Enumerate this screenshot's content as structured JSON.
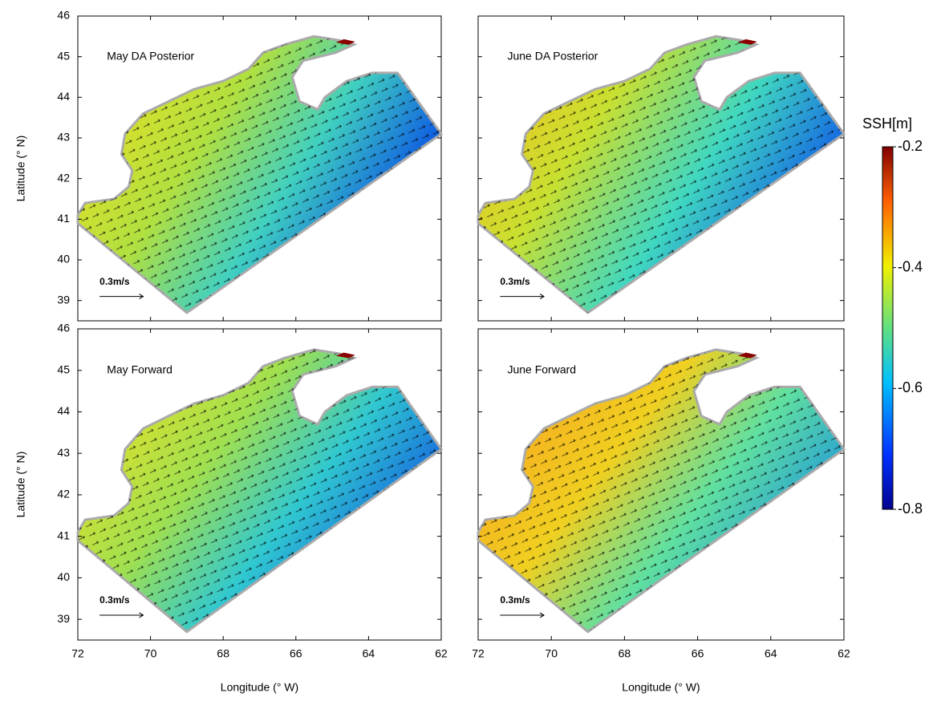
{
  "chart_data": [
    {
      "type": "map",
      "title": "May DA Posterior",
      "scale_label": "0.3m/s",
      "ylabel": "Latitude (° N)",
      "xlim": [
        72,
        62
      ],
      "xticks": [
        72,
        70,
        68,
        66,
        64,
        62
      ],
      "ylim": [
        38.5,
        46
      ],
      "yticks": [
        39,
        40,
        41,
        42,
        43,
        44,
        45,
        46
      ]
    },
    {
      "type": "map",
      "title": "June DA Posterior",
      "scale_label": "0.3m/s",
      "xlim": [
        72,
        62
      ],
      "xticks": [
        72,
        70,
        68,
        66,
        64,
        62
      ],
      "ylim": [
        38.5,
        46
      ],
      "yticks": [
        39,
        40,
        41,
        42,
        43,
        44,
        45,
        46
      ]
    },
    {
      "type": "map",
      "title": "May Forward",
      "scale_label": "0.3m/s",
      "ylabel": "Latitude (° N)",
      "xlabel": "Longitude (° W)",
      "xlim": [
        72,
        62
      ],
      "xticks": [
        72,
        70,
        68,
        66,
        64,
        62
      ],
      "ylim": [
        38.5,
        46
      ],
      "yticks": [
        39,
        40,
        41,
        42,
        43,
        44,
        45,
        46
      ]
    },
    {
      "type": "map",
      "title": "June Forward",
      "scale_label": "0.3m/s",
      "xlabel": "Longitude (° W)",
      "xlim": [
        72,
        62
      ],
      "xticks": [
        72,
        70,
        68,
        66,
        64,
        62
      ],
      "ylim": [
        38.5,
        46
      ],
      "yticks": [
        39,
        40,
        41,
        42,
        43,
        44,
        45,
        46
      ]
    }
  ],
  "colorbar": {
    "label": "SSH[m]",
    "lim": [
      -0.8,
      -0.2
    ],
    "ticks": [
      -0.2,
      -0.4,
      -0.6,
      -0.8
    ]
  }
}
